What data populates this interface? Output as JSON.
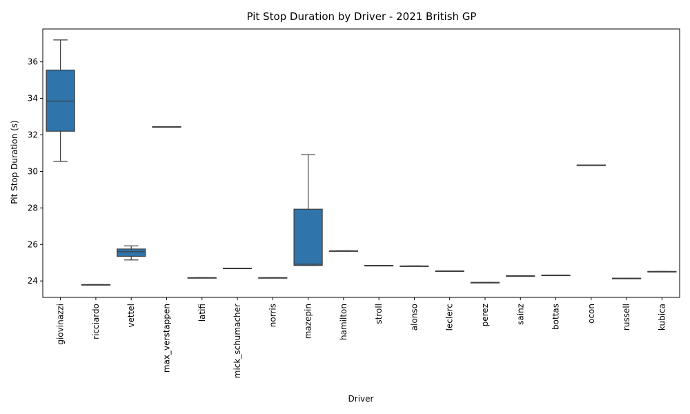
{
  "chart_data": {
    "type": "box",
    "title": "Pit Stop Duration by Driver - 2021 British GP",
    "xlabel": "Driver",
    "ylabel": "Pit Stop Duration (s)",
    "ylim": [
      23.1,
      37.8
    ],
    "yticks": [
      24,
      26,
      28,
      30,
      32,
      34,
      36
    ],
    "grid": false,
    "box_color": "#2f75ac",
    "line_color": "#3d3d3d",
    "categories": [
      "giovinazzi",
      "ricciardo",
      "vettel",
      "max_verstappen",
      "latifi",
      "mick_schumacher",
      "norris",
      "mazepin",
      "hamilton",
      "stroll",
      "alonso",
      "leclerc",
      "perez",
      "sainz",
      "bottas",
      "ocon",
      "russell",
      "kubica"
    ],
    "boxes": [
      {
        "driver": "giovinazzi",
        "min": 30.55,
        "q1": 32.2,
        "median": 33.85,
        "q3": 35.55,
        "max": 37.2
      },
      {
        "driver": "ricciardo",
        "min": 23.8,
        "q1": 23.8,
        "median": 23.8,
        "q3": 23.8,
        "max": 23.8
      },
      {
        "driver": "vettel",
        "min": 25.15,
        "q1": 25.35,
        "median": 25.6,
        "q3": 25.75,
        "max": 25.92
      },
      {
        "driver": "max_verstappen",
        "min": 32.45,
        "q1": 32.45,
        "median": 32.45,
        "q3": 32.45,
        "max": 32.45
      },
      {
        "driver": "latifi",
        "min": 24.18,
        "q1": 24.18,
        "median": 24.18,
        "q3": 24.18,
        "max": 24.18
      },
      {
        "driver": "mick_schumacher",
        "min": 24.7,
        "q1": 24.7,
        "median": 24.7,
        "q3": 24.7,
        "max": 24.7
      },
      {
        "driver": "norris",
        "min": 24.18,
        "q1": 24.18,
        "median": 24.18,
        "q3": 24.18,
        "max": 24.18
      },
      {
        "driver": "mazepin",
        "min": 24.85,
        "q1": 24.85,
        "median": 24.92,
        "q3": 27.93,
        "max": 30.92
      },
      {
        "driver": "hamilton",
        "min": 25.65,
        "q1": 25.65,
        "median": 25.65,
        "q3": 25.65,
        "max": 25.65
      },
      {
        "driver": "stroll",
        "min": 24.85,
        "q1": 24.85,
        "median": 24.85,
        "q3": 24.85,
        "max": 24.85
      },
      {
        "driver": "alonso",
        "min": 24.82,
        "q1": 24.82,
        "median": 24.82,
        "q3": 24.82,
        "max": 24.82
      },
      {
        "driver": "leclerc",
        "min": 24.55,
        "q1": 24.55,
        "median": 24.55,
        "q3": 24.55,
        "max": 24.55
      },
      {
        "driver": "perez",
        "min": 23.92,
        "q1": 23.92,
        "median": 23.92,
        "q3": 23.92,
        "max": 23.92
      },
      {
        "driver": "sainz",
        "min": 24.28,
        "q1": 24.28,
        "median": 24.28,
        "q3": 24.28,
        "max": 24.28
      },
      {
        "driver": "bottas",
        "min": 24.32,
        "q1": 24.32,
        "median": 24.32,
        "q3": 24.32,
        "max": 24.32
      },
      {
        "driver": "ocon",
        "min": 30.35,
        "q1": 30.35,
        "median": 30.35,
        "q3": 30.35,
        "max": 30.35
      },
      {
        "driver": "russell",
        "min": 24.15,
        "q1": 24.15,
        "median": 24.15,
        "q3": 24.15,
        "max": 24.15
      },
      {
        "driver": "kubica",
        "min": 24.52,
        "q1": 24.52,
        "median": 24.52,
        "q3": 24.52,
        "max": 24.52
      }
    ]
  }
}
